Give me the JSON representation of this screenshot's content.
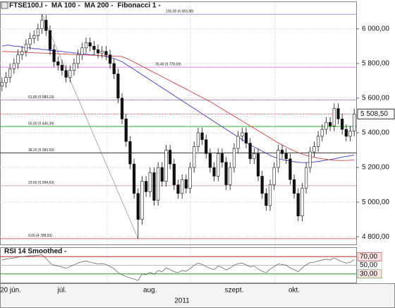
{
  "chart_data": [
    {
      "type": "candlestick",
      "title": "FTSE100.I -",
      "categories": [
        "20 jún.",
        null,
        null,
        null,
        null,
        null,
        null,
        null,
        null,
        null,
        null,
        null,
        null,
        null,
        null,
        "júl.",
        null,
        null,
        null,
        null,
        null,
        null,
        null,
        null,
        null,
        null,
        null,
        null,
        null,
        null,
        null,
        null,
        null,
        null,
        null,
        null,
        null,
        "aug.",
        null,
        null,
        null,
        null,
        null,
        null,
        null,
        null,
        null,
        null,
        null,
        null,
        null,
        null,
        null,
        null,
        null,
        null,
        null,
        null,
        "szept.",
        null,
        null,
        null,
        null,
        null,
        null,
        null,
        null,
        null,
        null,
        null,
        null,
        null,
        null,
        "okt.",
        null,
        null,
        null,
        null,
        null,
        null,
        null,
        null,
        null,
        null,
        null,
        null,
        null,
        null,
        null
      ],
      "x_label": "2011",
      "open": [
        5670,
        5690,
        5720,
        5770,
        5800,
        5850,
        5870,
        5910,
        5945,
        5960,
        6000,
        6050,
        5990,
        5880,
        5810,
        5790,
        5760,
        5720,
        5760,
        5800,
        5850,
        5890,
        5920,
        5900,
        5880,
        5860,
        5870,
        5850,
        5800,
        5740,
        5600,
        5480,
        5350,
        5220,
        5050,
        4900,
        5120,
        5060,
        5170,
        5010,
        5200,
        5120,
        5300,
        5220,
        5100,
        5050,
        5130,
        5080,
        5200,
        5320,
        5400,
        5360,
        5280,
        5200,
        5150,
        5280,
        5230,
        5100,
        5200,
        5310,
        5380,
        5400,
        5340,
        5250,
        5280,
        5150,
        5050,
        4980,
        5100,
        5200,
        5300,
        5280,
        5250,
        5130,
        5050,
        4920,
        5080,
        5200,
        5290,
        5320,
        5380,
        5420,
        5460,
        5440,
        5540,
        5480,
        5420,
        5380,
        5410
      ],
      "high": [
        5720,
        5750,
        5800,
        5830,
        5880,
        5900,
        5940,
        5975,
        5990,
        6030,
        6084,
        6080,
        6020,
        5910,
        5840,
        5820,
        5790,
        5790,
        5830,
        5880,
        5920,
        5950,
        5950,
        5930,
        5910,
        5900,
        5900,
        5880,
        5830,
        5770,
        5630,
        5510,
        5380,
        5250,
        5080,
        5150,
        5150,
        5200,
        5200,
        5230,
        5230,
        5330,
        5330,
        5250,
        5130,
        5160,
        5160,
        5230,
        5350,
        5430,
        5430,
        5390,
        5310,
        5230,
        5310,
        5310,
        5260,
        5230,
        5340,
        5410,
        5430,
        5430,
        5370,
        5310,
        5310,
        5180,
        5080,
        5130,
        5230,
        5330,
        5330,
        5310,
        5280,
        5160,
        5080,
        5110,
        5230,
        5320,
        5350,
        5410,
        5450,
        5490,
        5490,
        5570,
        5570,
        5510,
        5450,
        5440,
        5540
      ],
      "low": [
        5640,
        5660,
        5690,
        5740,
        5770,
        5820,
        5840,
        5880,
        5915,
        5930,
        5970,
        5960,
        5850,
        5780,
        5760,
        5730,
        5690,
        5690,
        5730,
        5770,
        5820,
        5860,
        5870,
        5850,
        5830,
        5830,
        5820,
        5770,
        5710,
        5570,
        5450,
        5320,
        5190,
        5020,
        4789,
        4870,
        5030,
        5030,
        4980,
        4980,
        5090,
        5090,
        5190,
        5070,
        5020,
        5020,
        5050,
        5050,
        5170,
        5290,
        5330,
        5250,
        5170,
        5120,
        5120,
        5200,
        5070,
        5070,
        5170,
        5280,
        5350,
        5310,
        5220,
        5220,
        5120,
        5020,
        4950,
        4950,
        5070,
        5170,
        5250,
        5220,
        5100,
        5020,
        4890,
        4890,
        5050,
        5170,
        5260,
        5290,
        5350,
        5390,
        5410,
        5410,
        5450,
        5390,
        5350,
        5350,
        5380
      ],
      "close": [
        5690,
        5720,
        5770,
        5800,
        5850,
        5870,
        5910,
        5945,
        5960,
        6000,
        6050,
        5990,
        5880,
        5810,
        5790,
        5760,
        5720,
        5760,
        5800,
        5850,
        5890,
        5920,
        5900,
        5880,
        5860,
        5870,
        5850,
        5800,
        5740,
        5600,
        5480,
        5350,
        5220,
        5050,
        4900,
        5120,
        5060,
        5170,
        5010,
        5200,
        5120,
        5300,
        5220,
        5100,
        5050,
        5130,
        5080,
        5200,
        5320,
        5400,
        5360,
        5280,
        5200,
        5150,
        5280,
        5230,
        5100,
        5200,
        5310,
        5380,
        5400,
        5340,
        5250,
        5280,
        5150,
        5050,
        4980,
        5100,
        5200,
        5300,
        5280,
        5250,
        5130,
        5050,
        4920,
        5080,
        5200,
        5290,
        5320,
        5380,
        5420,
        5460,
        5440,
        5540,
        5480,
        5420,
        5380,
        5410,
        5508.5
      ],
      "series": [
        {
          "name": "MA 100 -",
          "color": "#3a3acc",
          "values": [
            5900,
            5905,
            5905,
            5900,
            5900,
            5895,
            5890,
            5890,
            5885,
            5885,
            5880,
            5880,
            5875,
            5875,
            5870,
            5870,
            5865,
            5865,
            5860,
            5860,
            5855,
            5855,
            5850,
            5850,
            5845,
            5845,
            5840,
            5835,
            5828,
            5820,
            5810,
            5795,
            5780,
            5765,
            5750,
            5735,
            5720,
            5705,
            5690,
            5675,
            5660,
            5645,
            5630,
            5615,
            5600,
            5585,
            5570,
            5555,
            5540,
            5525,
            5510,
            5495,
            5480,
            5465,
            5450,
            5435,
            5420,
            5405,
            5390,
            5375,
            5360,
            5345,
            5330,
            5318,
            5306,
            5294,
            5282,
            5270,
            5260,
            5252,
            5245,
            5240,
            5236,
            5233,
            5230,
            5228,
            5228,
            5230,
            5232,
            5235,
            5238,
            5242,
            5246,
            5250,
            5255,
            5260,
            5264,
            5268,
            5272
          ]
        },
        {
          "name": "MA 200 -",
          "color": "#d04040",
          "values": [
            5870,
            5869,
            5868,
            5867,
            5866,
            5865,
            5864,
            5863,
            5862,
            5861,
            5860,
            5859,
            5858,
            5857,
            5856,
            5855,
            5854,
            5853,
            5852,
            5851,
            5850,
            5849,
            5848,
            5847,
            5846,
            5845,
            5844,
            5843,
            5842,
            5841,
            5840,
            5830,
            5820,
            5808,
            5796,
            5784,
            5772,
            5760,
            5748,
            5736,
            5724,
            5712,
            5700,
            5688,
            5676,
            5664,
            5652,
            5640,
            5628,
            5616,
            5604,
            5592,
            5580,
            5566,
            5552,
            5538,
            5524,
            5510,
            5496,
            5482,
            5468,
            5454,
            5440,
            5426,
            5412,
            5398,
            5384,
            5370,
            5356,
            5342,
            5330,
            5318,
            5306,
            5296,
            5286,
            5278,
            5270,
            5264,
            5258,
            5254,
            5250,
            5247,
            5244,
            5242,
            5240,
            5240,
            5240,
            5242,
            5244
          ]
        }
      ],
      "fibonacci": {
        "name": "Fibonacci 1 -",
        "levels": [
          {
            "value": 6083.98,
            "label": "100,00 (6 083,98)"
          },
          {
            "value": 5778.59,
            "label": "76,40 (5 778,59)"
          },
          {
            "value": 5589.19,
            "label": "61,80 (5 589,19)"
          },
          {
            "value": 5436.39,
            "label": "50,00 (5 436,39)"
          },
          {
            "value": 5283.59,
            "label": "38,20 (5 283,59)"
          },
          {
            "value": 5094.63,
            "label": "23,60 (5 094,63)"
          },
          {
            "value": 4788.93,
            "label": "0,00 (4 788,93)"
          }
        ],
        "colors": [
          "#8a8ad0",
          "#d060d0",
          "#b080c0",
          "#1a9a1a",
          "#222222",
          "#c09090",
          "#d03030"
        ]
      },
      "last_price": {
        "value": 5508.5,
        "label": "5 508,50"
      },
      "ylim": [
        4760,
        6150
      ],
      "yticks": [
        {
          "value": 4800,
          "label": "4 800,00"
        },
        {
          "value": 5000,
          "label": "5 000,00"
        },
        {
          "value": 5200,
          "label": "5 200,00"
        },
        {
          "value": 5400,
          "label": "5 400,00"
        },
        {
          "value": 5600,
          "label": "5 600,00"
        },
        {
          "value": 5800,
          "label": "5 800,00"
        },
        {
          "value": 6000,
          "label": "6 000,00"
        }
      ],
      "grid": true
    },
    {
      "type": "line",
      "title": "RSI 14 Smoothed -",
      "series": [
        {
          "color": "#555555",
          "values": [
            62,
            64,
            66,
            67,
            69,
            70,
            71,
            72,
            72,
            73,
            74,
            66,
            55,
            50,
            48,
            46,
            43,
            47,
            51,
            55,
            58,
            60,
            57,
            55,
            53,
            54,
            52,
            47,
            42,
            33,
            28,
            24,
            21,
            18,
            15,
            30,
            28,
            34,
            29,
            38,
            35,
            44,
            40,
            35,
            33,
            38,
            36,
            42,
            50,
            55,
            52,
            47,
            43,
            40,
            48,
            45,
            39,
            44,
            50,
            54,
            55,
            51,
            46,
            48,
            41,
            36,
            33,
            41,
            47,
            53,
            52,
            50,
            44,
            40,
            35,
            44,
            51,
            56,
            57,
            60,
            62,
            64,
            62,
            67,
            62,
            58,
            55,
            57,
            63
          ]
        }
      ],
      "ylim": [
        10,
        90
      ],
      "yticks": [
        {
          "value": 30,
          "label": "30,00"
        },
        {
          "value": 50,
          "label": "50,00"
        },
        {
          "value": 70,
          "label": "70,00"
        }
      ],
      "level_colors": [
        "#2a9a2a",
        "#bbbbbb",
        "#d03030"
      ]
    }
  ]
}
